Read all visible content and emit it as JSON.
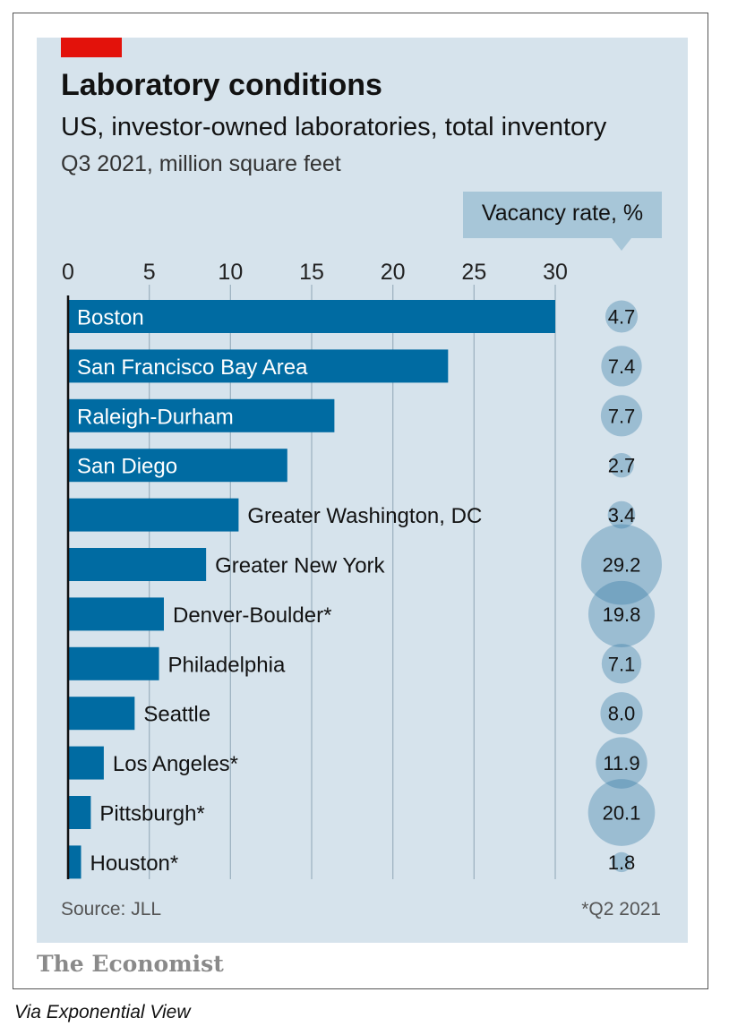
{
  "chart_data": {
    "type": "bar",
    "orientation": "horizontal",
    "title": "Laboratory conditions",
    "subtitle": "US, investor-owned laboratories, total inventory",
    "units": "Q3 2021, million square feet",
    "categories": [
      "Boston",
      "San Francisco Bay Area",
      "Raleigh-Durham",
      "San Diego",
      "Greater Washington, DC",
      "Greater New York",
      "Denver-Boulder*",
      "Philadelphia",
      "Seattle",
      "Los Angeles*",
      "Pittsburgh*",
      "Houston*"
    ],
    "values": [
      30,
      23.4,
      16.4,
      13.5,
      10.5,
      8.5,
      5.9,
      5.6,
      4.1,
      2.2,
      1.4,
      0.8
    ],
    "xlim": [
      0,
      30
    ],
    "xticks": [
      "0",
      "5",
      "10",
      "15",
      "20",
      "25",
      "30"
    ],
    "grid": true,
    "vacancy": {
      "label": "Vacancy rate, %",
      "labels": [
        "4.7",
        "7.4",
        "7.7",
        "2.7",
        "3.4",
        "29.2",
        "19.8",
        "7.1",
        "8.0",
        "11.9",
        "20.1",
        "1.8"
      ],
      "values": [
        4.7,
        7.4,
        7.7,
        2.7,
        3.4,
        29.2,
        19.8,
        7.1,
        8.0,
        11.9,
        20.1,
        1.8
      ]
    },
    "source": "Source: JLL",
    "footnote": "*Q2 2021"
  },
  "branding": {
    "publisher": "The Economist",
    "credit": "Via Exponential View"
  },
  "colors": {
    "panel": "#d6e3ec",
    "bar": "#006ba2",
    "bubble": "#2e76a3",
    "accent_red": "#e3120b",
    "vacancy_header": "#a7c6d8"
  }
}
